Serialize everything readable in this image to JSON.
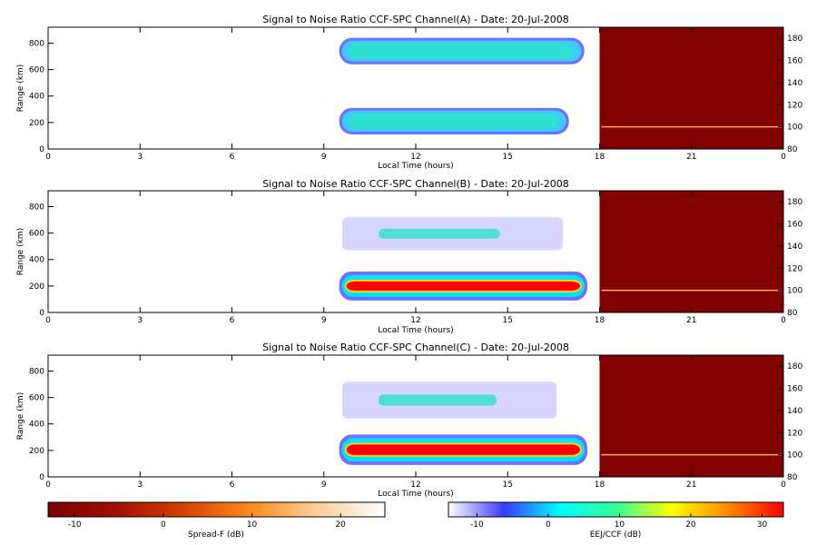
{
  "chart_data": {
    "type": "heatmap",
    "panels": [
      {
        "title": "Signal to Noise Ratio CCF-SPC Channel(A) - Date: 20-Jul-2008",
        "xlabel": "Local Time (hours)",
        "ylabel": "Range (km)",
        "x_ticks": [
          "0",
          "3",
          "6",
          "9",
          "12",
          "15",
          "18",
          "21",
          "0"
        ],
        "y_ticks": [
          "0",
          "200",
          "400",
          "600",
          "800"
        ],
        "y2_ticks": [
          "80",
          "100",
          "120",
          "140",
          "160",
          "180"
        ],
        "xlim_hours": [
          0,
          24
        ],
        "ylim_km": [
          0,
          920
        ],
        "y2lim": [
          80,
          190
        ],
        "left_regions": [
          {
            "t0": 9.5,
            "t1": 17.5,
            "r0": 640,
            "r1": 840,
            "peak_db": 12,
            "level": "mid"
          },
          {
            "t0": 9.5,
            "t1": 17.0,
            "r0": 110,
            "r1": 310,
            "peak_db": 10,
            "level": "mid"
          }
        ],
        "right_trace": [
          {
            "t0": 18.0,
            "t1": 24.0,
            "y2": 100,
            "level_db": 12
          }
        ]
      },
      {
        "title": "Signal to Noise Ratio CCF-SPC Channel(B) - Date: 20-Jul-2008",
        "xlabel": "Local Time (hours)",
        "ylabel": "Range (km)",
        "x_ticks": [
          "0",
          "3",
          "6",
          "9",
          "12",
          "15",
          "18",
          "21",
          "0"
        ],
        "y_ticks": [
          "0",
          "200",
          "400",
          "600",
          "800"
        ],
        "y2_ticks": [
          "80",
          "100",
          "120",
          "140",
          "160",
          "180"
        ],
        "xlim_hours": [
          0,
          24
        ],
        "ylim_km": [
          0,
          920
        ],
        "y2lim": [
          80,
          190
        ],
        "left_regions": [
          {
            "t0": 9.6,
            "t1": 16.8,
            "r0": 470,
            "r1": 720,
            "peak_db": 8,
            "level": "patchy"
          },
          {
            "t0": 9.5,
            "t1": 17.6,
            "r0": 90,
            "r1": 310,
            "peak_db": 30,
            "level": "strong"
          }
        ],
        "right_trace": [
          {
            "t0": 18.0,
            "t1": 24.0,
            "y2": 100,
            "level_db": 12
          }
        ]
      },
      {
        "title": "Signal to Noise Ratio CCF-SPC Channel(C) - Date: 20-Jul-2008",
        "xlabel": "Local Time (hours)",
        "ylabel": "Range (km)",
        "x_ticks": [
          "0",
          "3",
          "6",
          "9",
          "12",
          "15",
          "18",
          "21",
          "0"
        ],
        "y_ticks": [
          "0",
          "200",
          "400",
          "600",
          "800"
        ],
        "y2_ticks": [
          "80",
          "100",
          "120",
          "140",
          "160",
          "180"
        ],
        "xlim_hours": [
          0,
          24
        ],
        "ylim_km": [
          0,
          920
        ],
        "y2lim": [
          80,
          190
        ],
        "left_regions": [
          {
            "t0": 9.6,
            "t1": 16.6,
            "r0": 440,
            "r1": 720,
            "peak_db": 14,
            "level": "patchy"
          },
          {
            "t0": 9.5,
            "t1": 17.6,
            "r0": 90,
            "r1": 320,
            "peak_db": 30,
            "level": "strong"
          }
        ],
        "right_trace": [
          {
            "t0": 18.0,
            "t1": 24.0,
            "y2": 100,
            "level_db": 14
          }
        ]
      }
    ],
    "colorbars": [
      {
        "label": "Spread-F (dB)",
        "ticks": [
          "-10",
          "0",
          "10",
          "20"
        ],
        "range_db": [
          -13,
          25
        ],
        "colors": [
          "#7a0000",
          "#a01000",
          "#d64000",
          "#ff8a1c",
          "#ffcf9a",
          "#ffffff"
        ]
      },
      {
        "label": "EEJ/CCF (dB)",
        "ticks": [
          "-10",
          "0",
          "10",
          "20",
          "30"
        ],
        "range_db": [
          -14,
          33
        ],
        "colors": [
          "#ffffff",
          "#3a3aff",
          "#00ffff",
          "#35ff9a",
          "#ffff00",
          "#ff8c00",
          "#ff0000"
        ]
      }
    ]
  },
  "colors": {
    "right_background": "#800000",
    "trace_color": "#ffb040",
    "weak_echo": "#7070ff",
    "mid_echo": "#30e0d0",
    "strong_echo": "#ff0000"
  }
}
